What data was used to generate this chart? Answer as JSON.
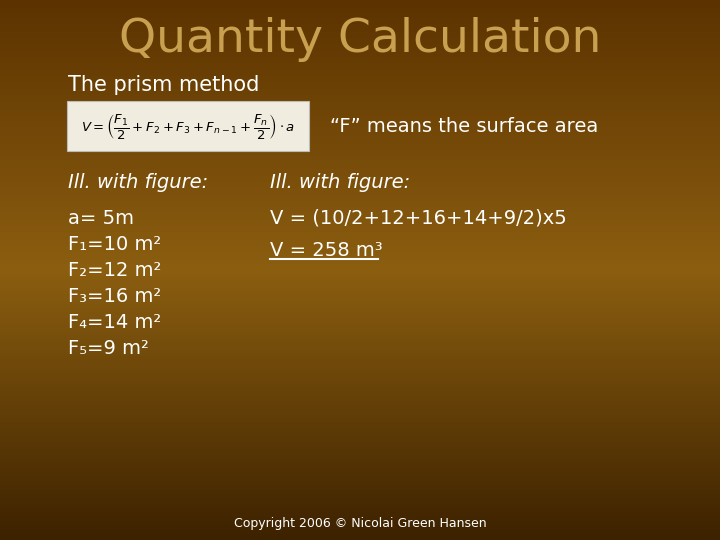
{
  "title": "Quantity Calculation",
  "subtitle": "The prism method",
  "f_means_text": "“F” means the surface area",
  "ill_with_figure": "Ill. with figure:",
  "left_data": [
    "a= 5m",
    "F₁=10 m²",
    "F₂=12 m²",
    "F₃=16 m²",
    "F₄=14 m²",
    "F₅=9 m²"
  ],
  "right_calc": "V = (10/2+12+16+14+9/2)x5",
  "right_result": "V = 258 m³",
  "copyright": "Copyright 2006 © Nicolai Green Hansen",
  "bg_color_top": "#5C3300",
  "bg_color_bottom": "#3D2200",
  "bg_color_center": "#8B5E10",
  "title_color": "#C8A050",
  "text_color": "#FFFFFF",
  "formula_box_color": "#F0EDE0",
  "formula_text_color": "#000000",
  "title_fontsize": 34,
  "subtitle_fontsize": 15,
  "body_fontsize": 14,
  "ill_fontsize": 14,
  "copyright_fontsize": 9
}
